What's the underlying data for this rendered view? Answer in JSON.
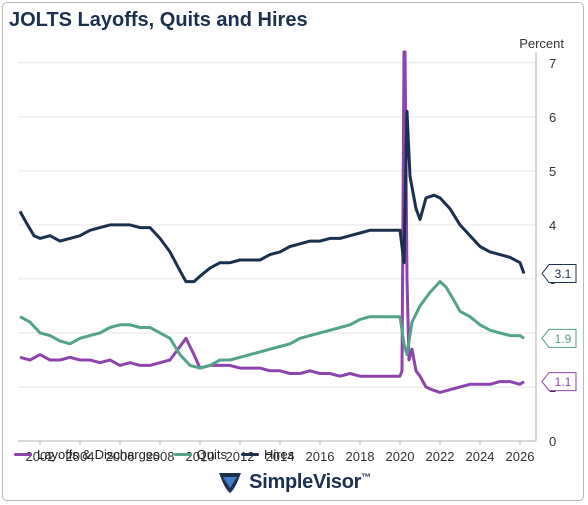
{
  "title": "JOLTS Layoffs, Quits and Hires",
  "brand": {
    "name": "SimpleVisor",
    "mark": "™"
  },
  "colors": {
    "layoffs": "#8e44ad",
    "quits": "#52a388",
    "hires": "#1b2f4f"
  },
  "chart_data": {
    "type": "line",
    "title": "JOLTS Layoffs, Quits and Hires",
    "ylabel": "Percent",
    "xlabel": "",
    "xlim": [
      2000.9,
      2026.8
    ],
    "ylim": [
      0,
      7.2
    ],
    "x_ticks": [
      "2002",
      "2004",
      "2006",
      "2008",
      "2010",
      "2012",
      "2014",
      "2016",
      "2018",
      "2020",
      "2022",
      "2024",
      "2026"
    ],
    "y_ticks": [
      "0",
      "1",
      "2",
      "3",
      "4",
      "5",
      "6",
      "7"
    ],
    "grid": "horizontal",
    "legend_position": "bottom-left",
    "end_labels": [
      {
        "series": "Hires",
        "value": "3.1"
      },
      {
        "series": "Quits",
        "value": "1.9"
      },
      {
        "series": "Layoffs & Discharges",
        "value": "1.1"
      }
    ],
    "series": [
      {
        "name": "Layoffs & Discharges",
        "color": "#8e44ad",
        "points": [
          [
            2001.0,
            1.55
          ],
          [
            2001.5,
            1.5
          ],
          [
            2002.0,
            1.6
          ],
          [
            2002.5,
            1.5
          ],
          [
            2003.0,
            1.5
          ],
          [
            2003.5,
            1.55
          ],
          [
            2004.0,
            1.5
          ],
          [
            2004.5,
            1.5
          ],
          [
            2005.0,
            1.45
          ],
          [
            2005.5,
            1.5
          ],
          [
            2006.0,
            1.4
          ],
          [
            2006.5,
            1.45
          ],
          [
            2007.0,
            1.4
          ],
          [
            2007.5,
            1.4
          ],
          [
            2008.0,
            1.45
          ],
          [
            2008.5,
            1.5
          ],
          [
            2009.0,
            1.75
          ],
          [
            2009.3,
            1.9
          ],
          [
            2009.7,
            1.6
          ],
          [
            2010.0,
            1.35
          ],
          [
            2010.5,
            1.4
          ],
          [
            2011.0,
            1.4
          ],
          [
            2011.5,
            1.4
          ],
          [
            2012.0,
            1.35
          ],
          [
            2012.5,
            1.35
          ],
          [
            2013.0,
            1.35
          ],
          [
            2013.5,
            1.3
          ],
          [
            2014.0,
            1.3
          ],
          [
            2014.5,
            1.25
          ],
          [
            2015.0,
            1.25
          ],
          [
            2015.5,
            1.3
          ],
          [
            2016.0,
            1.25
          ],
          [
            2016.5,
            1.25
          ],
          [
            2017.0,
            1.2
          ],
          [
            2017.5,
            1.25
          ],
          [
            2018.0,
            1.2
          ],
          [
            2018.5,
            1.2
          ],
          [
            2019.0,
            1.2
          ],
          [
            2019.5,
            1.2
          ],
          [
            2020.0,
            1.2
          ],
          [
            2020.1,
            1.3
          ],
          [
            2020.2,
            7.2
          ],
          [
            2020.25,
            7.2
          ],
          [
            2020.35,
            3.0
          ],
          [
            2020.45,
            1.5
          ],
          [
            2020.6,
            1.7
          ],
          [
            2020.8,
            1.3
          ],
          [
            2021.0,
            1.2
          ],
          [
            2021.3,
            1.0
          ],
          [
            2021.6,
            0.95
          ],
          [
            2022.0,
            0.9
          ],
          [
            2022.5,
            0.95
          ],
          [
            2023.0,
            1.0
          ],
          [
            2023.5,
            1.05
          ],
          [
            2024.0,
            1.05
          ],
          [
            2024.5,
            1.05
          ],
          [
            2025.0,
            1.1
          ],
          [
            2025.5,
            1.1
          ],
          [
            2026.0,
            1.05
          ],
          [
            2026.2,
            1.1
          ]
        ]
      },
      {
        "name": "Quits",
        "color": "#52a388",
        "points": [
          [
            2001.0,
            2.3
          ],
          [
            2001.5,
            2.2
          ],
          [
            2002.0,
            2.0
          ],
          [
            2002.5,
            1.95
          ],
          [
            2003.0,
            1.85
          ],
          [
            2003.5,
            1.8
          ],
          [
            2004.0,
            1.9
          ],
          [
            2004.5,
            1.95
          ],
          [
            2005.0,
            2.0
          ],
          [
            2005.5,
            2.1
          ],
          [
            2006.0,
            2.15
          ],
          [
            2006.5,
            2.15
          ],
          [
            2007.0,
            2.1
          ],
          [
            2007.5,
            2.1
          ],
          [
            2008.0,
            2.0
          ],
          [
            2008.5,
            1.9
          ],
          [
            2009.0,
            1.6
          ],
          [
            2009.5,
            1.4
          ],
          [
            2010.0,
            1.35
          ],
          [
            2010.5,
            1.4
          ],
          [
            2011.0,
            1.5
          ],
          [
            2011.5,
            1.5
          ],
          [
            2012.0,
            1.55
          ],
          [
            2012.5,
            1.6
          ],
          [
            2013.0,
            1.65
          ],
          [
            2013.5,
            1.7
          ],
          [
            2014.0,
            1.75
          ],
          [
            2014.5,
            1.8
          ],
          [
            2015.0,
            1.9
          ],
          [
            2015.5,
            1.95
          ],
          [
            2016.0,
            2.0
          ],
          [
            2016.5,
            2.05
          ],
          [
            2017.0,
            2.1
          ],
          [
            2017.5,
            2.15
          ],
          [
            2018.0,
            2.25
          ],
          [
            2018.5,
            2.3
          ],
          [
            2019.0,
            2.3
          ],
          [
            2019.5,
            2.3
          ],
          [
            2020.0,
            2.3
          ],
          [
            2020.2,
            1.8
          ],
          [
            2020.35,
            1.6
          ],
          [
            2020.6,
            2.2
          ],
          [
            2021.0,
            2.5
          ],
          [
            2021.5,
            2.75
          ],
          [
            2022.0,
            2.95
          ],
          [
            2022.3,
            2.85
          ],
          [
            2022.7,
            2.6
          ],
          [
            2023.0,
            2.4
          ],
          [
            2023.5,
            2.3
          ],
          [
            2024.0,
            2.15
          ],
          [
            2024.5,
            2.05
          ],
          [
            2025.0,
            2.0
          ],
          [
            2025.5,
            1.95
          ],
          [
            2026.0,
            1.95
          ],
          [
            2026.2,
            1.9
          ]
        ]
      },
      {
        "name": "Hires",
        "color": "#1b2f4f",
        "points": [
          [
            2001.0,
            4.25
          ],
          [
            2001.3,
            4.05
          ],
          [
            2001.7,
            3.8
          ],
          [
            2002.0,
            3.75
          ],
          [
            2002.5,
            3.8
          ],
          [
            2003.0,
            3.7
          ],
          [
            2003.5,
            3.75
          ],
          [
            2004.0,
            3.8
          ],
          [
            2004.5,
            3.9
          ],
          [
            2005.0,
            3.95
          ],
          [
            2005.5,
            4.0
          ],
          [
            2006.0,
            4.0
          ],
          [
            2006.5,
            4.0
          ],
          [
            2007.0,
            3.95
          ],
          [
            2007.5,
            3.95
          ],
          [
            2008.0,
            3.75
          ],
          [
            2008.5,
            3.5
          ],
          [
            2009.0,
            3.15
          ],
          [
            2009.3,
            2.95
          ],
          [
            2009.7,
            2.95
          ],
          [
            2010.0,
            3.05
          ],
          [
            2010.5,
            3.2
          ],
          [
            2011.0,
            3.3
          ],
          [
            2011.5,
            3.3
          ],
          [
            2012.0,
            3.35
          ],
          [
            2012.5,
            3.35
          ],
          [
            2013.0,
            3.35
          ],
          [
            2013.5,
            3.45
          ],
          [
            2014.0,
            3.5
          ],
          [
            2014.5,
            3.6
          ],
          [
            2015.0,
            3.65
          ],
          [
            2015.5,
            3.7
          ],
          [
            2016.0,
            3.7
          ],
          [
            2016.5,
            3.75
          ],
          [
            2017.0,
            3.75
          ],
          [
            2017.5,
            3.8
          ],
          [
            2018.0,
            3.85
          ],
          [
            2018.5,
            3.9
          ],
          [
            2019.0,
            3.9
          ],
          [
            2019.5,
            3.9
          ],
          [
            2020.0,
            3.9
          ],
          [
            2020.2,
            3.3
          ],
          [
            2020.35,
            6.1
          ],
          [
            2020.5,
            4.9
          ],
          [
            2020.8,
            4.3
          ],
          [
            2021.0,
            4.1
          ],
          [
            2021.3,
            4.5
          ],
          [
            2021.7,
            4.55
          ],
          [
            2022.0,
            4.5
          ],
          [
            2022.5,
            4.3
          ],
          [
            2023.0,
            4.0
          ],
          [
            2023.5,
            3.8
          ],
          [
            2024.0,
            3.6
          ],
          [
            2024.5,
            3.5
          ],
          [
            2025.0,
            3.45
          ],
          [
            2025.5,
            3.4
          ],
          [
            2026.0,
            3.3
          ],
          [
            2026.2,
            3.1
          ]
        ]
      }
    ]
  }
}
